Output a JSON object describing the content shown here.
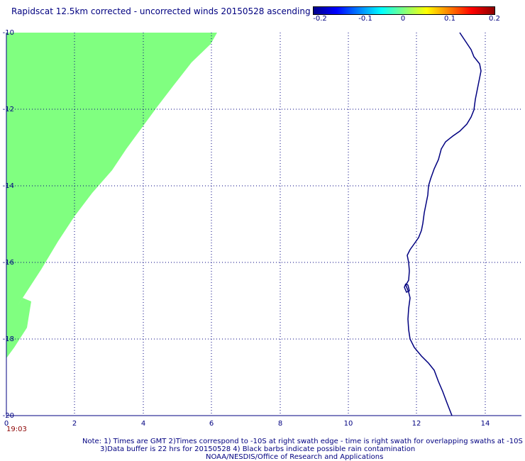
{
  "title": "Rapidscat 12.5km corrected - uncorrected winds 20150528 ascending",
  "colorbar": {
    "labels": [
      "-0.2",
      "-0.1",
      "0",
      "0.1",
      "0.2"
    ],
    "colors": [
      "#00008b",
      "#0000ff",
      "#00ffff",
      "#ffff00",
      "#ff0000",
      "#8b0000"
    ]
  },
  "axes": {
    "x_ticks": [
      "0",
      "2",
      "4",
      "6",
      "8",
      "10",
      "12",
      "14"
    ],
    "y_ticks": [
      "-10",
      "-12",
      "-14",
      "-16",
      "-18",
      "-20"
    ],
    "x_range": [
      0,
      15
    ],
    "y_range": [
      -20,
      -10
    ]
  },
  "swath": {
    "color": "#80ff80",
    "description_left_edge_lat_at_lon0": -18.5,
    "right_edge_lon_at_lat_minus10": 6.2
  },
  "timestamp": "19:03",
  "notes": {
    "line1": "Note: 1) Times are GMT 2)Times correspond to -10S at right swath edge - time is right swath for overlapping swaths at -10S",
    "line2": "3)Data buffer is 22 hrs for 20150528 4) Black barbs indicate possible rain contamination",
    "line3": "NOAA/NESDIS/Office of Research and Applications"
  },
  "coastline_color": "#000080"
}
